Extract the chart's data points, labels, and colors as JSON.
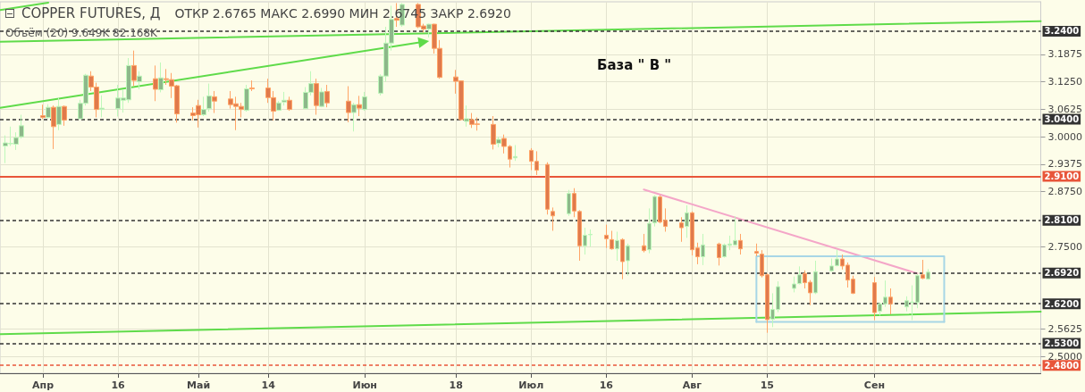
{
  "chart_data": {
    "type": "candlestick",
    "title": "COPPER FUTURES, Д",
    "subtitle": "ОТКР 2.6765 МАКС 2.6990 МИН 2.6745 ЗАКР 2.6920",
    "annotations": [
      "Объём (20) 9.649K 82.168K",
      "База \" В \""
    ],
    "x": [
      "--03-26",
      "--03-27",
      "--03-28",
      "--03-29",
      "--04-02",
      "--04-03",
      "--04-04",
      "--04-05",
      "--04-06",
      "--04-09",
      "--04-10",
      "--04-11",
      "--04-12",
      "--04-13",
      "--04-16",
      "--04-17",
      "--04-18",
      "--04-19",
      "--04-20",
      "--04-23",
      "--04-24",
      "--04-25",
      "--04-26",
      "--04-27",
      "--04-30",
      "--05-01",
      "--05-02",
      "--05-03",
      "--05-04",
      "--05-07",
      "--05-08",
      "--05-09",
      "--05-10",
      "--05-11",
      "--05-14",
      "--05-15",
      "--05-16",
      "--05-17",
      "--05-18",
      "--05-21",
      "--05-22",
      "--05-23",
      "--05-24",
      "--05-25",
      "--05-29",
      "--05-30",
      "--05-31",
      "--06-01",
      "--06-04",
      "--06-05",
      "--06-06",
      "--06-07",
      "--06-08",
      "--06-11",
      "--06-12",
      "--06-13",
      "--06-14",
      "--06-15",
      "--06-18",
      "--06-19",
      "--06-20",
      "--06-21",
      "--06-22",
      "--06-25",
      "--06-26",
      "--06-27",
      "--06-28",
      "--06-29",
      "--07-02",
      "--07-03",
      "--07-05",
      "--07-06",
      "--07-09",
      "--07-10",
      "--07-11",
      "--07-12",
      "--07-13",
      "--07-16",
      "--07-17",
      "--07-18",
      "--07-19",
      "--07-20",
      "--07-23",
      "--07-24",
      "--07-25",
      "--07-26",
      "--07-27",
      "--07-30",
      "--07-31",
      "--08-01",
      "--08-02",
      "--08-03",
      "--08-06",
      "--08-07",
      "--08-08",
      "--08-09",
      "--08-10",
      "--08-13",
      "--08-14",
      "--08-15",
      "--08-16",
      "--08-17",
      "--08-20",
      "--08-21",
      "--08-22",
      "--08-23",
      "--08-24",
      "--08-27",
      "--08-28",
      "--08-29",
      "--08-30",
      "--08-31",
      "--09-04",
      "--09-05",
      "--09-06",
      "--09-07",
      "--09-10",
      "--09-11",
      "--09-12",
      "--09-13",
      "--09-14"
    ],
    "ohlc": [
      [
        2.979,
        3.003,
        2.94,
        2.986
      ],
      [
        2.984,
        3.023,
        2.979,
        2.985
      ],
      [
        2.983,
        3.01,
        2.97,
        2.998
      ],
      [
        3.0,
        3.05,
        2.996,
        3.025
      ],
      [
        3.048,
        3.073,
        3.04,
        3.044
      ],
      [
        3.044,
        3.074,
        3.041,
        3.067
      ],
      [
        3.067,
        3.071,
        2.972,
        3.023
      ],
      [
        3.028,
        3.089,
        3.015,
        3.069
      ],
      [
        3.069,
        3.071,
        3.025,
        3.038
      ],
      [
        3.041,
        3.084,
        3.04,
        3.076
      ],
      [
        3.076,
        3.143,
        3.071,
        3.14
      ],
      [
        3.138,
        3.149,
        3.104,
        3.113
      ],
      [
        3.113,
        3.123,
        3.044,
        3.062
      ],
      [
        3.062,
        3.094,
        3.044,
        3.065
      ],
      [
        3.064,
        3.118,
        3.046,
        3.088
      ],
      [
        3.083,
        3.108,
        3.055,
        3.088
      ],
      [
        3.084,
        3.179,
        3.077,
        3.162
      ],
      [
        3.162,
        3.196,
        3.115,
        3.128
      ],
      [
        3.125,
        3.149,
        3.108,
        3.138
      ],
      [
        3.132,
        3.162,
        3.081,
        3.108
      ],
      [
        3.107,
        3.169,
        3.101,
        3.134
      ],
      [
        3.132,
        3.154,
        3.118,
        3.13
      ],
      [
        3.13,
        3.145,
        3.088,
        3.115
      ],
      [
        3.116,
        3.118,
        3.032,
        3.052
      ],
      [
        3.054,
        3.067,
        3.037,
        3.048
      ],
      [
        3.071,
        3.084,
        3.021,
        3.05
      ],
      [
        3.05,
        3.091,
        3.047,
        3.062
      ],
      [
        3.064,
        3.121,
        3.057,
        3.093
      ],
      [
        3.091,
        3.104,
        3.054,
        3.081
      ],
      [
        3.086,
        3.104,
        3.064,
        3.073
      ],
      [
        3.075,
        3.091,
        3.015,
        3.069
      ],
      [
        3.069,
        3.077,
        3.044,
        3.062
      ],
      [
        3.06,
        3.118,
        3.057,
        3.109
      ],
      [
        3.111,
        3.128,
        3.104,
        3.109
      ],
      [
        3.111,
        3.132,
        3.077,
        3.089
      ],
      [
        3.089,
        3.104,
        3.037,
        3.058
      ],
      [
        3.06,
        3.081,
        3.059,
        3.077
      ],
      [
        3.079,
        3.102,
        3.071,
        3.083
      ],
      [
        3.083,
        3.091,
        3.059,
        3.062
      ],
      [
        3.064,
        3.113,
        3.064,
        3.101
      ],
      [
        3.101,
        3.149,
        3.094,
        3.121
      ],
      [
        3.121,
        3.132,
        3.05,
        3.071
      ],
      [
        3.069,
        3.111,
        3.067,
        3.102
      ],
      [
        3.103,
        3.118,
        3.067,
        3.077
      ],
      [
        3.081,
        3.115,
        3.033,
        3.055
      ],
      [
        3.055,
        3.077,
        3.012,
        3.073
      ],
      [
        3.073,
        3.093,
        3.047,
        3.065
      ],
      [
        3.062,
        3.102,
        3.059,
        3.091
      ],
      [
        3.099,
        3.142,
        3.094,
        3.138
      ],
      [
        3.138,
        3.25,
        3.125,
        3.213
      ],
      [
        3.213,
        3.298,
        3.196,
        3.267
      ],
      [
        3.269,
        3.304,
        3.25,
        3.265
      ],
      [
        3.254,
        3.304,
        3.25,
        3.301
      ],
      [
        3.301,
        3.304,
        3.247,
        3.25
      ],
      [
        3.252,
        3.257,
        3.237,
        3.245
      ],
      [
        3.245,
        3.257,
        3.226,
        3.256
      ],
      [
        3.256,
        3.257,
        3.189,
        3.201
      ],
      [
        3.201,
        3.22,
        3.132,
        3.135
      ],
      [
        3.136,
        3.152,
        3.098,
        3.126
      ],
      [
        3.127,
        3.128,
        3.037,
        3.039
      ],
      [
        3.035,
        3.071,
        3.023,
        3.041
      ],
      [
        3.039,
        3.054,
        3.02,
        3.028
      ],
      [
        3.029,
        3.044,
        3.014,
        3.028
      ],
      [
        3.028,
        3.047,
        2.971,
        2.983
      ],
      [
        2.985,
        3.0,
        2.976,
        2.994
      ],
      [
        2.996,
        3.005,
        2.962,
        2.978
      ],
      [
        2.978,
        2.981,
        2.93,
        2.949
      ],
      [
        2.952,
        2.981,
        2.945,
        2.955
      ],
      [
        2.969,
        2.974,
        2.924,
        2.944
      ],
      [
        2.944,
        2.967,
        2.913,
        2.924
      ],
      [
        2.937,
        2.942,
        2.823,
        2.835
      ],
      [
        2.83,
        2.839,
        2.786,
        2.82
      ],
      [
        2.825,
        2.879,
        2.82,
        2.871
      ],
      [
        2.871,
        2.883,
        2.817,
        2.831
      ],
      [
        2.83,
        2.833,
        2.718,
        2.752
      ],
      [
        2.752,
        2.793,
        2.732,
        2.776
      ],
      [
        2.777,
        2.789,
        2.75,
        2.778
      ],
      [
        2.776,
        2.8,
        2.747,
        2.768
      ],
      [
        2.766,
        2.786,
        2.743,
        2.745
      ],
      [
        2.745,
        2.784,
        2.718,
        2.764
      ],
      [
        2.766,
        2.769,
        2.676,
        2.716
      ],
      [
        2.718,
        2.757,
        2.684,
        2.752
      ],
      [
        2.752,
        2.779,
        2.737,
        2.741
      ],
      [
        2.743,
        2.837,
        2.735,
        2.803
      ],
      [
        2.804,
        2.867,
        2.796,
        2.864
      ],
      [
        2.863,
        2.867,
        2.803,
        2.806
      ],
      [
        2.81,
        2.837,
        2.784,
        2.796
      ],
      [
        2.804,
        2.817,
        2.761,
        2.793
      ],
      [
        2.796,
        2.844,
        2.77,
        2.827
      ],
      [
        2.827,
        2.83,
        2.73,
        2.743
      ],
      [
        2.747,
        2.759,
        2.71,
        2.727
      ],
      [
        2.727,
        2.779,
        2.708,
        2.754
      ],
      [
        2.756,
        2.759,
        2.707,
        2.725
      ],
      [
        2.727,
        2.757,
        2.725,
        2.754
      ],
      [
        2.753,
        2.775,
        2.742,
        2.756
      ],
      [
        2.754,
        2.819,
        2.752,
        2.764
      ],
      [
        2.764,
        2.779,
        2.732,
        2.745
      ],
      [
        2.739,
        2.757,
        2.728,
        2.735
      ],
      [
        2.733,
        2.742,
        2.68,
        2.684
      ],
      [
        2.686,
        2.689,
        2.554,
        2.584
      ],
      [
        2.585,
        2.644,
        2.567,
        2.607
      ],
      [
        2.607,
        2.671,
        2.601,
        2.659
      ],
      [
        2.655,
        2.682,
        2.646,
        2.665
      ],
      [
        2.666,
        2.705,
        2.664,
        2.686
      ],
      [
        2.689,
        2.696,
        2.655,
        2.668
      ],
      [
        2.669,
        2.674,
        2.617,
        2.645
      ],
      [
        2.645,
        2.718,
        2.642,
        2.693
      ],
      [
        2.695,
        2.723,
        2.693,
        2.706
      ],
      [
        2.707,
        2.743,
        2.705,
        2.722
      ],
      [
        2.722,
        2.732,
        2.698,
        2.706
      ],
      [
        2.708,
        2.714,
        2.657,
        2.674
      ],
      [
        2.676,
        2.684,
        2.642,
        2.644
      ],
      [
        2.668,
        2.681,
        2.583,
        2.6
      ],
      [
        2.603,
        2.623,
        2.593,
        2.62
      ],
      [
        2.62,
        2.673,
        2.613,
        2.635
      ],
      [
        2.635,
        2.655,
        2.596,
        2.62
      ],
      [
        2.613,
        2.637,
        2.603,
        2.627
      ],
      [
        2.623,
        2.662,
        2.583,
        2.624
      ],
      [
        2.623,
        2.688,
        2.61,
        2.684
      ],
      [
        2.686,
        2.72,
        2.676,
        2.678
      ],
      [
        2.6765,
        2.699,
        2.6745,
        2.692
      ]
    ],
    "colors": [
      "#8db88a",
      "#8db88a",
      "#8db88a",
      "#8db88a",
      "#e07a4c",
      "#8db88a",
      "#e07a4c",
      "#8db88a",
      "#e07a4c",
      "#8db88a",
      "#8db88a",
      "#e07a4c",
      "#e07a4c",
      "#8db88a",
      "#8db88a",
      "#8db88a",
      "#8db88a",
      "#e07a4c",
      "#8db88a",
      "#e07a4c",
      "#8db88a",
      "#e07a4c",
      "#e07a4c",
      "#e07a4c",
      "#e07a4c",
      "#e07a4c",
      "#8db88a",
      "#8db88a",
      "#e07a4c",
      "#e07a4c",
      "#e07a4c",
      "#e07a4c",
      "#8db88a",
      "#e07a4c",
      "#e07a4c",
      "#e07a4c",
      "#8db88a",
      "#8db88a",
      "#e07a4c",
      "#8db88a",
      "#8db88a",
      "#e07a4c",
      "#8db88a",
      "#e07a4c",
      "#e07a4c",
      "#8db88a",
      "#e07a4c",
      "#8db88a",
      "#8db88a",
      "#8db88a",
      "#8db88a",
      "#e07a4c",
      "#8db88a",
      "#e07a4c",
      "#e07a4c",
      "#8db88a",
      "#e07a4c",
      "#e07a4c",
      "#e07a4c",
      "#e07a4c",
      "#8db88a",
      "#e07a4c",
      "#e07a4c",
      "#e07a4c",
      "#8db88a",
      "#e07a4c",
      "#e07a4c",
      "#8db88a",
      "#e07a4c",
      "#e07a4c",
      "#e07a4c",
      "#e07a4c",
      "#8db88a",
      "#e07a4c",
      "#e07a4c",
      "#8db88a",
      "#8db88a",
      "#e07a4c",
      "#e07a4c",
      "#8db88a",
      "#e07a4c",
      "#8db88a",
      "#e07a4c",
      "#8db88a",
      "#8db88a",
      "#e07a4c",
      "#e07a4c",
      "#e07a4c",
      "#8db88a",
      "#e07a4c",
      "#e07a4c",
      "#8db88a",
      "#e07a4c",
      "#8db88a",
      "#8db88a",
      "#8db88a",
      "#e07a4c",
      "#e07a4c",
      "#e07a4c",
      "#e07a4c",
      "#8db88a",
      "#8db88a",
      "#8db88a",
      "#8db88a",
      "#e07a4c",
      "#e07a4c",
      "#8db88a",
      "#8db88a",
      "#8db88a",
      "#e07a4c",
      "#e07a4c",
      "#e07a4c",
      "#e07a4c",
      "#8db88a",
      "#8db88a",
      "#e07a4c",
      "#8db88a",
      "#8db88a",
      "#8db88a",
      "#e07a4c",
      "#8db88a"
    ],
    "series": [
      {
        "type": "line",
        "color": "#5fdb4a",
        "x": [
          "--03-25",
          "--10-05"
        ],
        "values": [
          3.216,
          3.263
        ]
      },
      {
        "type": "line",
        "color": "#5fdb4a",
        "x": [
          "--03-25",
          "--04-03"
        ],
        "values": [
          3.288,
          3.305
        ]
      },
      {
        "type": "line",
        "color": "#5fdb4a",
        "marker": "triangle",
        "x": [
          "--03-25",
          "--06-12"
        ],
        "values": [
          3.066,
          3.216
        ]
      },
      {
        "type": "line",
        "color": "#5fdb4a",
        "x": [
          "--03-25",
          "--10-05"
        ],
        "values": [
          2.551,
          2.602
        ]
      },
      {
        "type": "line",
        "color": "#f4a6c8",
        "x": [
          "--07-23",
          "--09-12"
        ],
        "values": [
          2.88,
          2.689
        ]
      },
      {
        "type": "line",
        "color": "#a7d6e6",
        "x": [
          "--08-13",
          "--08-13",
          "--09-17",
          "--09-17"
        ],
        "values": [
          2.579,
          2.728,
          2.728,
          2.579
        ]
      },
      {
        "type": "line",
        "color": "#a7d6e6",
        "x": [
          "--08-13",
          "--09-17"
        ],
        "values": [
          2.579,
          2.579
        ]
      }
    ],
    "ref_lines": [
      {
        "axis": "y",
        "value": 3.24,
        "label": "3.2400",
        "color": "#333333",
        "line_style": "dashed"
      },
      {
        "axis": "y",
        "value": 3.04,
        "label": "3.0400",
        "color": "#333333",
        "line_style": "dashed"
      },
      {
        "axis": "y",
        "value": 2.91,
        "label": "2.9100",
        "color": "#e8553a",
        "line_style": "solid"
      },
      {
        "axis": "y",
        "value": 2.81,
        "label": "2.8100",
        "color": "#333333",
        "line_style": "dashed"
      },
      {
        "axis": "y",
        "value": 2.692,
        "label": "2.6920",
        "color": "#333333",
        "line_style": "dashed"
      },
      {
        "axis": "y",
        "value": 2.62,
        "label": "2.6200",
        "color": "#333333",
        "line_style": "dashed"
      },
      {
        "axis": "y",
        "value": 2.53,
        "label": "2.5300",
        "color": "#333333",
        "line_style": "dashed"
      },
      {
        "axis": "y",
        "value": 2.48,
        "label": "2.4800",
        "color": "#e8553a",
        "line_style": "dashed"
      }
    ],
    "xlim": [
      "--03-25",
      "--10-05"
    ],
    "xticks": [
      {
        "value": "--04-02",
        "label": "Апр"
      },
      {
        "value": "--04-16",
        "label": "16"
      },
      {
        "value": "--05-01",
        "label": "Май"
      },
      {
        "value": "--05-14",
        "label": "14"
      },
      {
        "value": "--06-01",
        "label": "Июн"
      },
      {
        "value": "--06-18",
        "label": "18"
      },
      {
        "value": "--07-02",
        "label": "Июл"
      },
      {
        "value": "--07-16",
        "label": "16"
      },
      {
        "value": "--08-01",
        "label": "Авг"
      },
      {
        "value": "--08-15",
        "label": "15"
      },
      {
        "value": "--09-04",
        "label": "Сен"
      }
    ],
    "ylim": [
      2.462,
      3.307
    ],
    "yticks": [
      {
        "value": 2.5,
        "label": "2.5000"
      },
      {
        "value": 2.5625,
        "label": "2.5625"
      },
      {
        "value": 2.75,
        "label": "2.7500"
      },
      {
        "value": 2.875,
        "label": "2.8750"
      },
      {
        "value": 2.9375,
        "label": "2.9375"
      },
      {
        "value": 3,
        "label": "3.0000"
      },
      {
        "value": 3.0625,
        "label": "3.0625"
      },
      {
        "value": 3.125,
        "label": "3.1250"
      },
      {
        "value": 3.1875,
        "label": "3.1875"
      }
    ],
    "grid": true
  }
}
